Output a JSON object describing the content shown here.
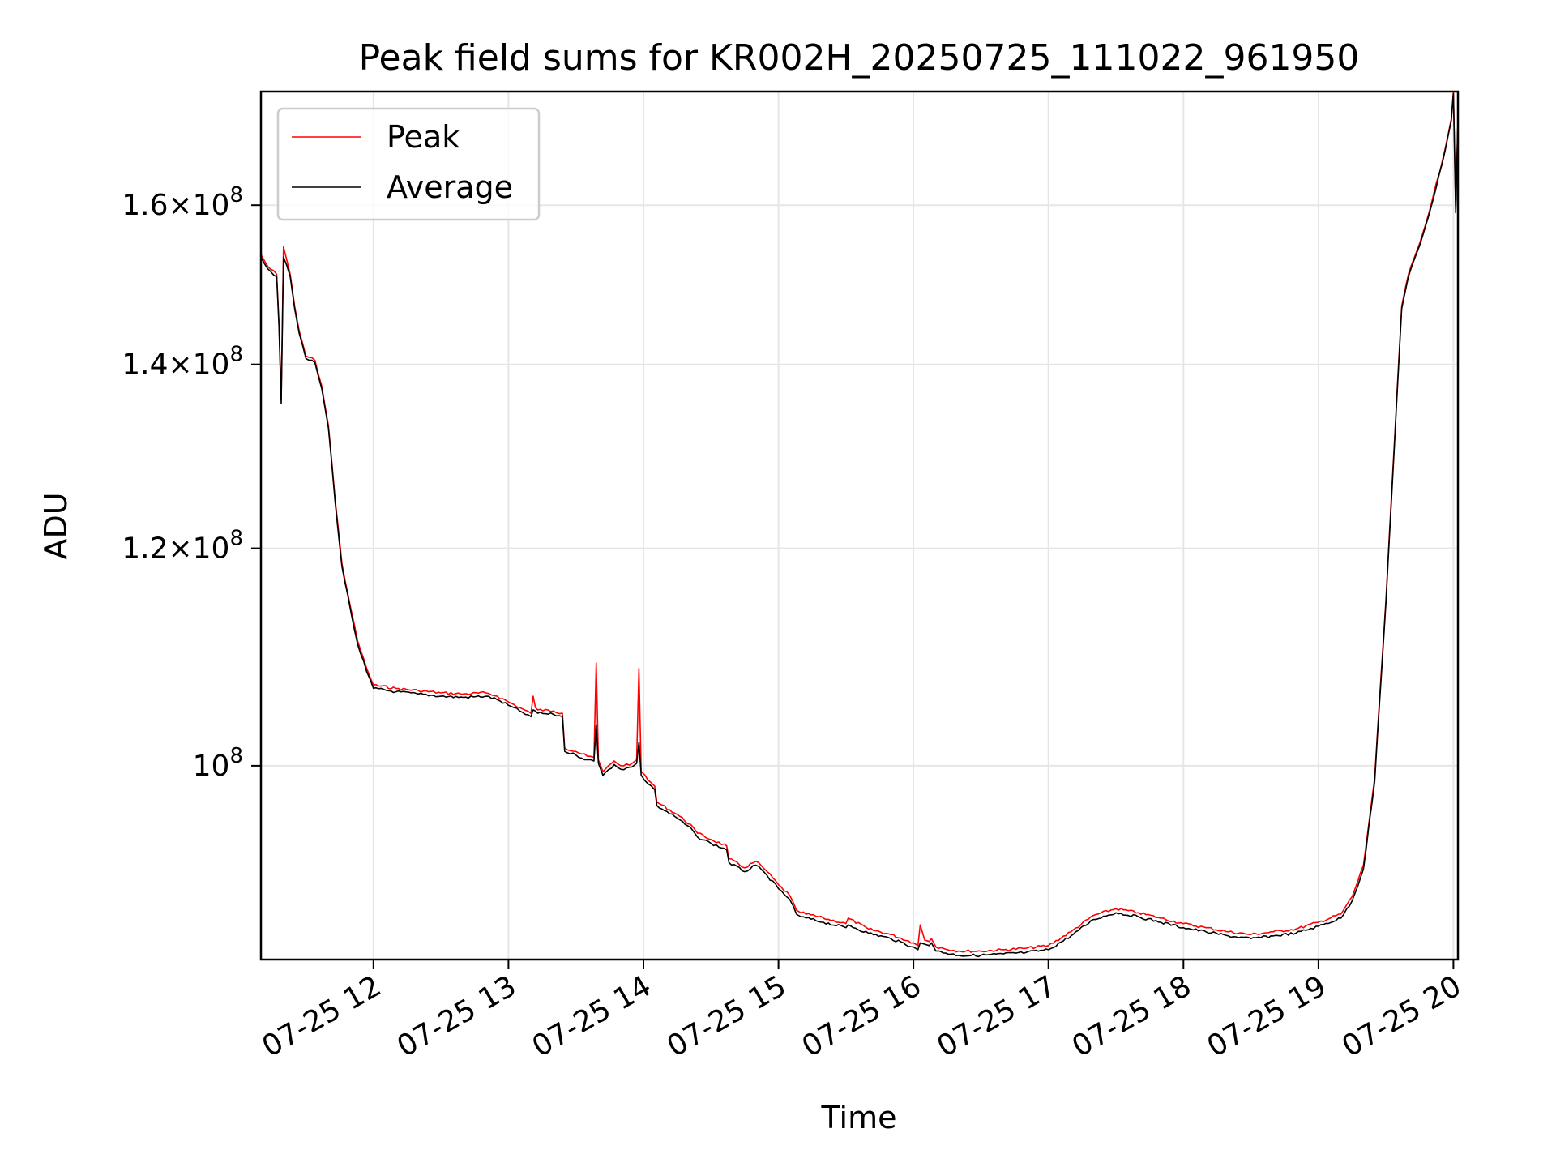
{
  "chart_data": {
    "type": "line",
    "title": "Peak field sums for KR002H_20250725_111022_961950",
    "xlabel": "Time",
    "ylabel": "ADU",
    "xlim": [
      "2025-07-25 11:10",
      "2025-07-25 20:02"
    ],
    "ylim": [
      85000000,
      176000000
    ],
    "yscale": "log",
    "grid": true,
    "legend": "upper-left",
    "x_ticks": [
      {
        "x": "2025-07-25 12:00",
        "label": "07-25 12"
      },
      {
        "x": "2025-07-25 13:00",
        "label": "07-25 13"
      },
      {
        "x": "2025-07-25 14:00",
        "label": "07-25 14"
      },
      {
        "x": "2025-07-25 15:00",
        "label": "07-25 15"
      },
      {
        "x": "2025-07-25 16:00",
        "label": "07-25 16"
      },
      {
        "x": "2025-07-25 17:00",
        "label": "07-25 17"
      },
      {
        "x": "2025-07-25 18:00",
        "label": "07-25 18"
      },
      {
        "x": "2025-07-25 19:00",
        "label": "07-25 19"
      },
      {
        "x": "2025-07-25 20:00",
        "label": "07-25 20"
      }
    ],
    "y_ticks": [
      {
        "value": 100000000,
        "mantissa": "",
        "exponent": "8"
      },
      {
        "value": 120000000,
        "mantissa": "1.2",
        "exponent": "8"
      },
      {
        "value": 140000000,
        "mantissa": "1.4",
        "exponent": "8"
      },
      {
        "value": 160000000,
        "mantissa": "1.6",
        "exponent": "8"
      }
    ],
    "colors": {
      "Peak": "#ff0000",
      "Average": "#000000",
      "grid": "#e6e6e6"
    },
    "series": [
      {
        "name": "Peak",
        "x": [
          "2025-07-25 11:10",
          "2025-07-25 11:13",
          "2025-07-25 11:17",
          "2025-07-25 11:18",
          "2025-07-25 11:19",
          "2025-07-25 11:20",
          "2025-07-25 11:23",
          "2025-07-25 11:25",
          "2025-07-25 11:27",
          "2025-07-25 11:30",
          "2025-07-25 11:34",
          "2025-07-25 11:37",
          "2025-07-25 11:40",
          "2025-07-25 11:43",
          "2025-07-25 11:46",
          "2025-07-25 11:50",
          "2025-07-25 11:53",
          "2025-07-25 11:57",
          "2025-07-25 12:00",
          "2025-07-25 12:10",
          "2025-07-25 12:20",
          "2025-07-25 12:30",
          "2025-07-25 12:40",
          "2025-07-25 12:50",
          "2025-07-25 12:55",
          "2025-07-25 13:00",
          "2025-07-25 13:05",
          "2025-07-25 13:10",
          "2025-07-25 13:11",
          "2025-07-25 13:12",
          "2025-07-25 13:13",
          "2025-07-25 13:20",
          "2025-07-25 13:24",
          "2025-07-25 13:25",
          "2025-07-25 13:30",
          "2025-07-25 13:35",
          "2025-07-25 13:38",
          "2025-07-25 13:39",
          "2025-07-25 13:40",
          "2025-07-25 13:42",
          "2025-07-25 13:47",
          "2025-07-25 13:50",
          "2025-07-25 13:55",
          "2025-07-25 13:57",
          "2025-07-25 13:58",
          "2025-07-25 13:59",
          "2025-07-25 14:02",
          "2025-07-25 14:05",
          "2025-07-25 14:06",
          "2025-07-25 14:15",
          "2025-07-25 14:22",
          "2025-07-25 14:24",
          "2025-07-25 14:30",
          "2025-07-25 14:37",
          "2025-07-25 14:38",
          "2025-07-25 14:45",
          "2025-07-25 14:50",
          "2025-07-25 14:55",
          "2025-07-25 15:00",
          "2025-07-25 15:05",
          "2025-07-25 15:08",
          "2025-07-25 15:10",
          "2025-07-25 15:20",
          "2025-07-25 15:30",
          "2025-07-25 15:31",
          "2025-07-25 15:40",
          "2025-07-25 15:50",
          "2025-07-25 16:00",
          "2025-07-25 16:02",
          "2025-07-25 16:03",
          "2025-07-25 16:05",
          "2025-07-25 16:07",
          "2025-07-25 16:08",
          "2025-07-25 16:10",
          "2025-07-25 16:20",
          "2025-07-25 16:30",
          "2025-07-25 16:40",
          "2025-07-25 16:50",
          "2025-07-25 17:00",
          "2025-07-25 17:10",
          "2025-07-25 17:20",
          "2025-07-25 17:30",
          "2025-07-25 17:40",
          "2025-07-25 17:50",
          "2025-07-25 18:00",
          "2025-07-25 18:10",
          "2025-07-25 18:20",
          "2025-07-25 18:30",
          "2025-07-25 18:40",
          "2025-07-25 18:50",
          "2025-07-25 19:00",
          "2025-07-25 19:10",
          "2025-07-25 19:15",
          "2025-07-25 19:20",
          "2025-07-25 19:25",
          "2025-07-25 19:30",
          "2025-07-25 19:35",
          "2025-07-25 19:37",
          "2025-07-25 19:40",
          "2025-07-25 19:45",
          "2025-07-25 19:50",
          "2025-07-25 19:55",
          "2025-07-25 19:59",
          "2025-07-25 20:00",
          "2025-07-25 20:01",
          "2025-07-25 20:02"
        ],
        "y": [
          153500000,
          152000000,
          151000000,
          145000000,
          136000000,
          154500000,
          151000000,
          147000000,
          144000000,
          141000000,
          140500000,
          137500000,
          133000000,
          125000000,
          118500000,
          114000000,
          111000000,
          108500000,
          107000000,
          106700000,
          106500000,
          106300000,
          106200000,
          106300000,
          106000000,
          105500000,
          105000000,
          104500000,
          106000000,
          105000000,
          104800000,
          104700000,
          104500000,
          101500000,
          101200000,
          100800000,
          100700000,
          109000000,
          100500000,
          99500000,
          100400000,
          100000000,
          100200000,
          100500000,
          108500000,
          99500000,
          98800000,
          98300000,
          97000000,
          96000000,
          95000000,
          94500000,
          94000000,
          93500000,
          92500000,
          91800000,
          92300000,
          91500000,
          90500000,
          89700000,
          88600000,
          88400000,
          88000000,
          87600000,
          88000000,
          87200000,
          86800000,
          86200000,
          86000000,
          87500000,
          86400000,
          86300000,
          86500000,
          85900000,
          85600000,
          85600000,
          85700000,
          85800000,
          86000000,
          87000000,
          88200000,
          88700000,
          88400000,
          88000000,
          87600000,
          87300000,
          87000000,
          86800000,
          87000000,
          87200000,
          87700000,
          88300000,
          89600000,
          92000000,
          99000000,
          115000000,
          137000000,
          147000000,
          151000000,
          155000000,
          160000000,
          166000000,
          172000000,
          176000000,
          160000000,
          172000000
        ]
      },
      {
        "name": "Average",
        "x": [
          "2025-07-25 11:10",
          "2025-07-25 11:13",
          "2025-07-25 11:17",
          "2025-07-25 11:18",
          "2025-07-25 11:19",
          "2025-07-25 11:20",
          "2025-07-25 11:23",
          "2025-07-25 11:25",
          "2025-07-25 11:27",
          "2025-07-25 11:30",
          "2025-07-25 11:34",
          "2025-07-25 11:37",
          "2025-07-25 11:40",
          "2025-07-25 11:43",
          "2025-07-25 11:46",
          "2025-07-25 11:50",
          "2025-07-25 11:53",
          "2025-07-25 11:57",
          "2025-07-25 12:00",
          "2025-07-25 12:10",
          "2025-07-25 12:20",
          "2025-07-25 12:30",
          "2025-07-25 12:40",
          "2025-07-25 12:50",
          "2025-07-25 12:55",
          "2025-07-25 13:00",
          "2025-07-25 13:05",
          "2025-07-25 13:10",
          "2025-07-25 13:11",
          "2025-07-25 13:12",
          "2025-07-25 13:13",
          "2025-07-25 13:20",
          "2025-07-25 13:24",
          "2025-07-25 13:25",
          "2025-07-25 13:30",
          "2025-07-25 13:35",
          "2025-07-25 13:38",
          "2025-07-25 13:39",
          "2025-07-25 13:40",
          "2025-07-25 13:42",
          "2025-07-25 13:47",
          "2025-07-25 13:50",
          "2025-07-25 13:55",
          "2025-07-25 13:57",
          "2025-07-25 13:58",
          "2025-07-25 13:59",
          "2025-07-25 14:02",
          "2025-07-25 14:05",
          "2025-07-25 14:06",
          "2025-07-25 14:15",
          "2025-07-25 14:22",
          "2025-07-25 14:24",
          "2025-07-25 14:30",
          "2025-07-25 14:37",
          "2025-07-25 14:38",
          "2025-07-25 14:45",
          "2025-07-25 14:50",
          "2025-07-25 14:55",
          "2025-07-25 15:00",
          "2025-07-25 15:05",
          "2025-07-25 15:08",
          "2025-07-25 15:10",
          "2025-07-25 15:20",
          "2025-07-25 15:30",
          "2025-07-25 15:31",
          "2025-07-25 15:40",
          "2025-07-25 15:50",
          "2025-07-25 16:00",
          "2025-07-25 16:02",
          "2025-07-25 16:03",
          "2025-07-25 16:05",
          "2025-07-25 16:07",
          "2025-07-25 16:08",
          "2025-07-25 16:10",
          "2025-07-25 16:20",
          "2025-07-25 16:30",
          "2025-07-25 16:40",
          "2025-07-25 16:50",
          "2025-07-25 17:00",
          "2025-07-25 17:10",
          "2025-07-25 17:20",
          "2025-07-25 17:30",
          "2025-07-25 17:40",
          "2025-07-25 17:50",
          "2025-07-25 18:00",
          "2025-07-25 18:10",
          "2025-07-25 18:20",
          "2025-07-25 18:30",
          "2025-07-25 18:40",
          "2025-07-25 18:50",
          "2025-07-25 19:00",
          "2025-07-25 19:10",
          "2025-07-25 19:15",
          "2025-07-25 19:20",
          "2025-07-25 19:25",
          "2025-07-25 19:30",
          "2025-07-25 19:35",
          "2025-07-25 19:37",
          "2025-07-25 19:40",
          "2025-07-25 19:45",
          "2025-07-25 19:50",
          "2025-07-25 19:55",
          "2025-07-25 19:59",
          "2025-07-25 20:00",
          "2025-07-25 20:01",
          "2025-07-25 20:02"
        ],
        "y": [
          153200000,
          151700000,
          150700000,
          144700000,
          135500000,
          153200000,
          150700000,
          146700000,
          143700000,
          140700000,
          140200000,
          137200000,
          132700000,
          124700000,
          118200000,
          113700000,
          110700000,
          108200000,
          106700000,
          106400000,
          106200000,
          106000000,
          105900000,
          106000000,
          105700000,
          105200000,
          104700000,
          104200000,
          104800000,
          104700000,
          104500000,
          104400000,
          104200000,
          101200000,
          100900000,
          100500000,
          100400000,
          103500000,
          100200000,
          99200000,
          100100000,
          99700000,
          99900000,
          100200000,
          102000000,
          99200000,
          98500000,
          98000000,
          96700000,
          95700000,
          94700000,
          94200000,
          93700000,
          93200000,
          92200000,
          91500000,
          92000000,
          91200000,
          90200000,
          89400000,
          88300000,
          88100000,
          87700000,
          87300000,
          87500000,
          86900000,
          86500000,
          85900000,
          85700000,
          86200000,
          86100000,
          86000000,
          86200000,
          85600000,
          85300000,
          85300000,
          85400000,
          85500000,
          85700000,
          86700000,
          87900000,
          88400000,
          88100000,
          87700000,
          87300000,
          87000000,
          86700000,
          86500000,
          86700000,
          86900000,
          87400000,
          88000000,
          89300000,
          91700000,
          98700000,
          114700000,
          136700000,
          146700000,
          150700000,
          154700000,
          159700000,
          165700000,
          171700000,
          175700000,
          159000000,
          171700000
        ]
      }
    ]
  }
}
